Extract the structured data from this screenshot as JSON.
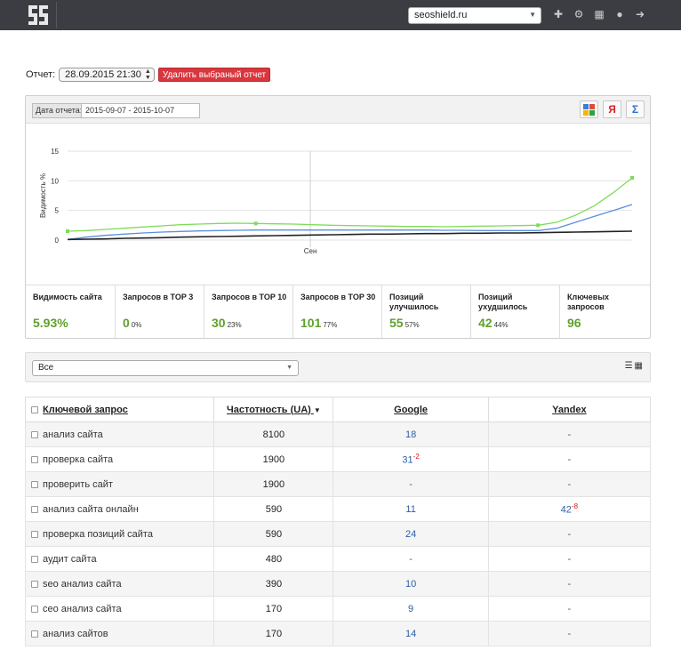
{
  "header": {
    "logo_icon": "seoshield-logo-icon",
    "site": "seoshield.ru",
    "icons": [
      "plus-icon",
      "gears-icon",
      "grid-icon",
      "user-icon",
      "logout-icon"
    ]
  },
  "report": {
    "label": "Отчет:",
    "date": "28.09.2015 21:30",
    "delete_label": "Удалить выбраный отчет"
  },
  "chart_panel": {
    "date_label": "Дата отчета:",
    "date_range": "2015-09-07 - 2015-10-07",
    "google_btn": "google-icon",
    "yandex_btn": "Я",
    "sum_btn": "Σ"
  },
  "chart_data": {
    "type": "line",
    "ylabel": "Видимость %",
    "xlabel": "",
    "ylim": [
      0,
      15
    ],
    "yticks": [
      "15",
      "10",
      "5",
      "0"
    ],
    "xtick_label": "Сен",
    "x": [
      0,
      1,
      2,
      3,
      4,
      5,
      6,
      7,
      8,
      9,
      10,
      11,
      12,
      13,
      14,
      15,
      16,
      17,
      18,
      19,
      20,
      21,
      22,
      23,
      24,
      25,
      26,
      27,
      28,
      29,
      30
    ],
    "series": [
      {
        "color": "#7fdc5a",
        "values": [
          1.5,
          1.6,
          1.8,
          2.0,
          2.2,
          2.4,
          2.6,
          2.7,
          2.8,
          2.85,
          2.8,
          2.75,
          2.7,
          2.6,
          2.5,
          2.45,
          2.4,
          2.35,
          2.3,
          2.3,
          2.25,
          2.3,
          2.35,
          2.4,
          2.45,
          2.5,
          3.0,
          4.2,
          5.8,
          8.0,
          10.5
        ]
      },
      {
        "color": "#5a8fe0",
        "values": [
          0.1,
          0.5,
          0.8,
          1.0,
          1.2,
          1.35,
          1.45,
          1.55,
          1.6,
          1.65,
          1.7,
          1.7,
          1.7,
          1.7,
          1.7,
          1.7,
          1.7,
          1.7,
          1.7,
          1.7,
          1.65,
          1.65,
          1.6,
          1.6,
          1.6,
          1.6,
          2.0,
          3.0,
          4.0,
          5.0,
          6.0
        ]
      },
      {
        "color": "#222222",
        "values": [
          0.1,
          0.15,
          0.2,
          0.3,
          0.35,
          0.4,
          0.5,
          0.55,
          0.6,
          0.65,
          0.7,
          0.75,
          0.8,
          0.85,
          0.9,
          0.95,
          1.0,
          1.0,
          1.05,
          1.1,
          1.1,
          1.15,
          1.15,
          1.2,
          1.2,
          1.25,
          1.3,
          1.35,
          1.4,
          1.45,
          1.5
        ]
      }
    ]
  },
  "stats": [
    {
      "label": "Видимость сайта",
      "value": "5.93%",
      "pct": ""
    },
    {
      "label": "Запросов в TOP 3",
      "value": "0",
      "pct": "0%"
    },
    {
      "label": "Запросов в TOP 10",
      "value": "30",
      "pct": "23%"
    },
    {
      "label": "Запросов в TOP 30",
      "value": "101",
      "pct": "77%"
    },
    {
      "label": "Позиций улучшилось",
      "value": "55",
      "pct": "57%"
    },
    {
      "label": "Позиций ухудшилось",
      "value": "42",
      "pct": "44%"
    },
    {
      "label": "Ключевых запросов",
      "value": "96",
      "pct": ""
    }
  ],
  "filter": {
    "value": "Все",
    "list_icon": "list-view-icon",
    "grid_icon": "grid-view-icon"
  },
  "table": {
    "headers": {
      "keyword": "Ключевой запрос",
      "frequency": "Частотность (UA)",
      "google": "Google",
      "yandex": "Yandex"
    },
    "rows": [
      {
        "keyword": "анализ сайта",
        "freq": "8100",
        "google": "18",
        "google_delta": "",
        "yandex": "-",
        "yandex_delta": ""
      },
      {
        "keyword": "проверка сайта",
        "freq": "1900",
        "google": "31",
        "google_delta": "-2",
        "yandex": "-",
        "yandex_delta": ""
      },
      {
        "keyword": "проверить сайт",
        "freq": "1900",
        "google": "-",
        "google_delta": "",
        "yandex": "-",
        "yandex_delta": ""
      },
      {
        "keyword": "анализ сайта онлайн",
        "freq": "590",
        "google": "11",
        "google_delta": "",
        "yandex": "42",
        "yandex_delta": "-8"
      },
      {
        "keyword": "проверка позиций сайта",
        "freq": "590",
        "google": "24",
        "google_delta": "",
        "yandex": "-",
        "yandex_delta": ""
      },
      {
        "keyword": "аудит сайта",
        "freq": "480",
        "google": "-",
        "google_delta": "",
        "yandex": "-",
        "yandex_delta": ""
      },
      {
        "keyword": "seo анализ сайта",
        "freq": "390",
        "google": "10",
        "google_delta": "",
        "yandex": "-",
        "yandex_delta": ""
      },
      {
        "keyword": "сео анализ сайта",
        "freq": "170",
        "google": "9",
        "google_delta": "",
        "yandex": "-",
        "yandex_delta": ""
      },
      {
        "keyword": "анализ сайтов",
        "freq": "170",
        "google": "14",
        "google_delta": "",
        "yandex": "-",
        "yandex_delta": ""
      }
    ]
  }
}
